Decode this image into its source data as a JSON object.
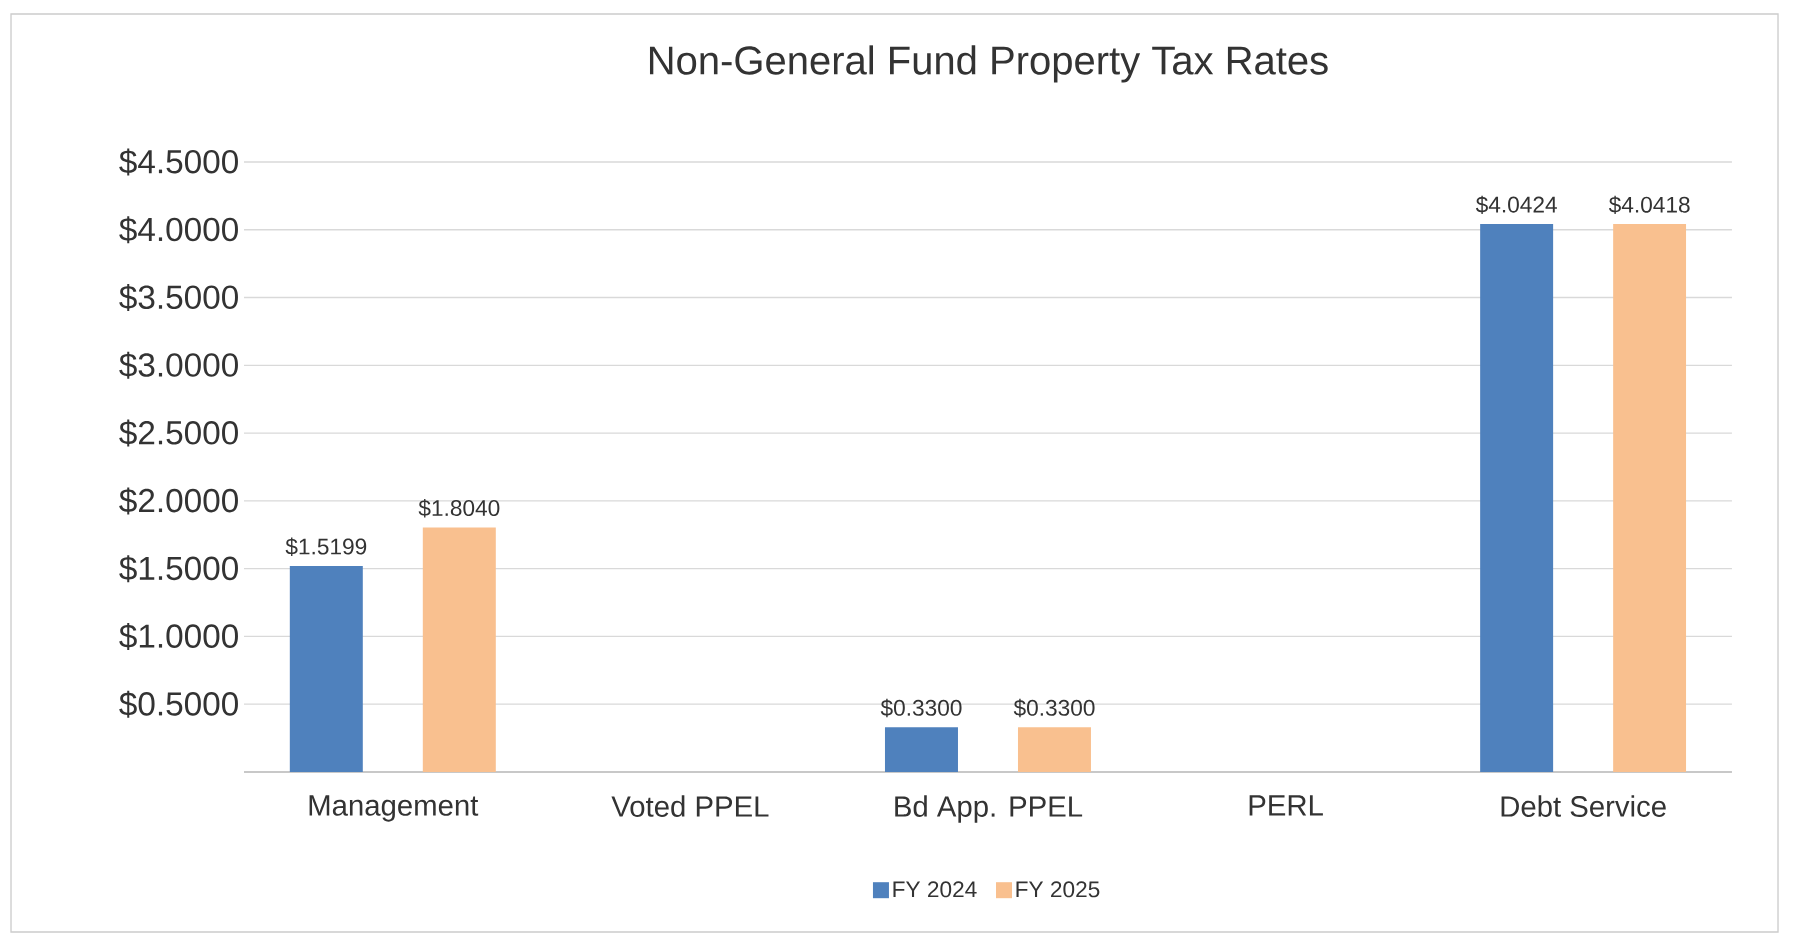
{
  "chart_data": {
    "type": "bar",
    "title": "Non-General Fund Property Tax Rates",
    "categories": [
      "Management",
      "Voted PPEL",
      "Bd App. PPEL",
      "PERL",
      "Debt Service"
    ],
    "series": [
      {
        "name": "FY 2024",
        "color": "#4f81bd",
        "values": [
          1.5199,
          null,
          0.33,
          null,
          4.0424
        ],
        "value_labels": [
          "$1.5199",
          null,
          "$0.3300",
          null,
          "$4.0424"
        ]
      },
      {
        "name": "FY 2025",
        "color": "#f9c08f",
        "values": [
          1.804,
          null,
          0.33,
          null,
          4.0418
        ],
        "value_labels": [
          "$1.8040",
          null,
          "$0.3300",
          null,
          "$4.0418"
        ]
      }
    ],
    "ylim": [
      0,
      4.5
    ],
    "yticks": [
      {
        "value": 0,
        "label": null
      },
      {
        "value": 0.5,
        "label": "$0.5000"
      },
      {
        "value": 1,
        "label": "$1.0000"
      },
      {
        "value": 1.5,
        "label": "$1.5000"
      },
      {
        "value": 2,
        "label": "$2.0000"
      },
      {
        "value": 2.5,
        "label": "$2.5000"
      },
      {
        "value": 3,
        "label": "$3.0000"
      },
      {
        "value": 3.5,
        "label": "$3.5000"
      },
      {
        "value": 4,
        "label": "$4.0000"
      },
      {
        "value": 4.5,
        "label": "$4.5000"
      }
    ],
    "grid": "y",
    "legend": "bottom"
  }
}
